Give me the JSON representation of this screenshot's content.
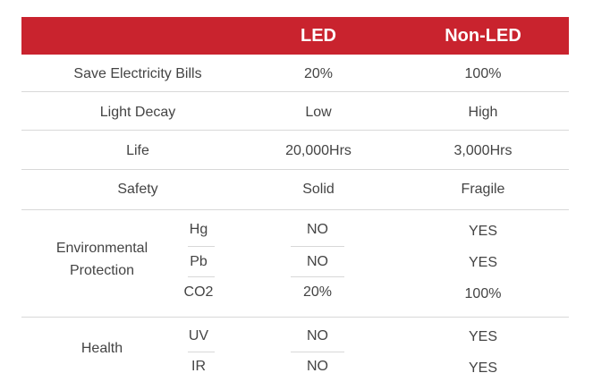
{
  "header": {
    "col1": "",
    "led": "LED",
    "non_led": "Non-LED"
  },
  "rows": [
    {
      "label": "Save Electricity Bills",
      "led": "20%",
      "non_led": "100%"
    },
    {
      "label": "Light Decay",
      "led": "Low",
      "non_led": "High"
    },
    {
      "label": "Life",
      "led": "20,000Hrs",
      "non_led": "3,000Hrs"
    },
    {
      "label": "Safety",
      "led": "Solid",
      "non_led": "Fragile"
    }
  ],
  "groups": [
    {
      "label_line1": "Environmental",
      "label_line2": "Protection",
      "subrows": [
        {
          "sub": "Hg",
          "led": "NO",
          "non_led": "YES"
        },
        {
          "sub": "Pb",
          "led": "NO",
          "non_led": "YES"
        },
        {
          "sub": "CO2",
          "led": "20%",
          "non_led": "100%"
        }
      ]
    },
    {
      "label": "Health",
      "subrows": [
        {
          "sub": "UV",
          "led": "NO",
          "non_led": "YES"
        },
        {
          "sub": "IR",
          "led": "NO",
          "non_led": "YES"
        }
      ]
    }
  ],
  "colors": {
    "header_bg": "#c9232e",
    "header_text": "#ffffff",
    "text": "#444444",
    "rule": "#d8d8d8"
  }
}
